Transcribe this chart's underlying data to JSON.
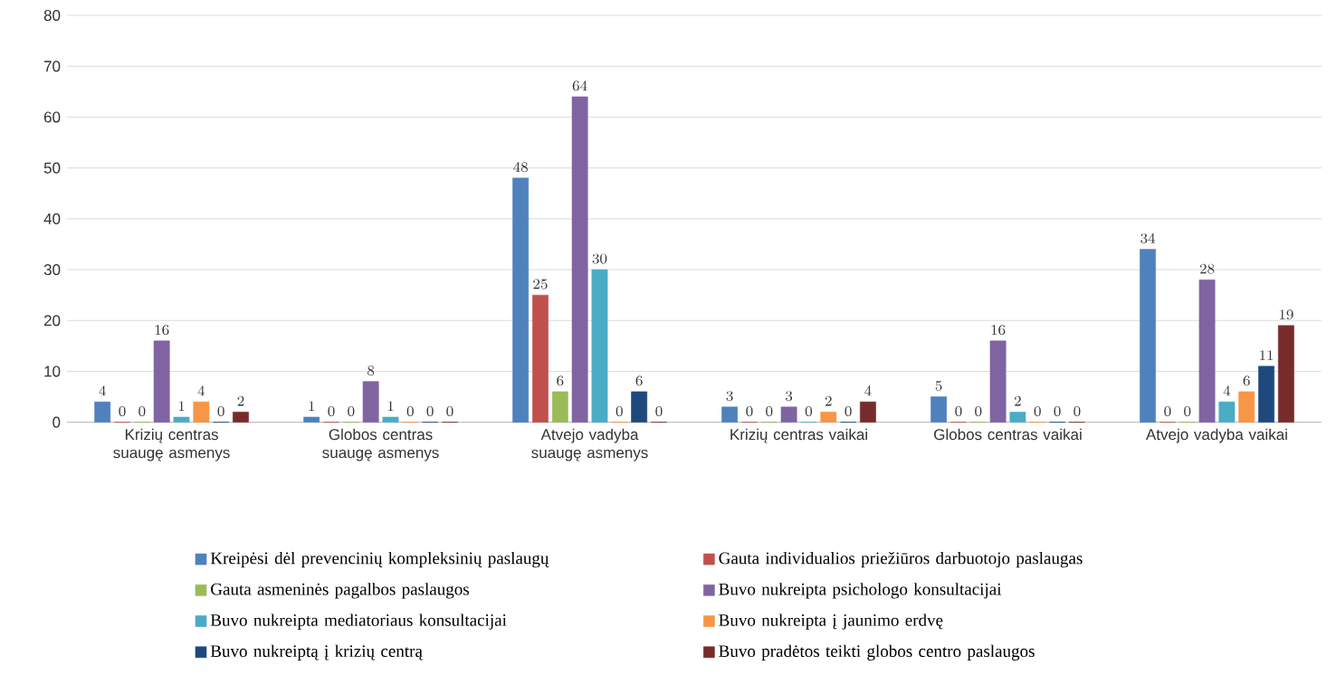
{
  "chart_data": {
    "type": "bar",
    "categories": [
      "Krizių centras suaugę asmenys",
      "Globos centras suaugę asmenys",
      "Atvejo vadyba suaugę asmenys",
      "Krizių centras vaikai",
      "Globos centras vaikai",
      "Atvejo vadyba vaikai"
    ],
    "series": [
      {
        "name": "Kreipėsi dėl prevencinių kompleksinių paslaugų",
        "color": "#4f81bd",
        "values": [
          4,
          1,
          48,
          3,
          5,
          34
        ]
      },
      {
        "name": "Gauta individualios priežiūros darbuotojo paslaugas",
        "color": "#c0504d",
        "values": [
          0,
          0,
          25,
          0,
          0,
          0
        ]
      },
      {
        "name": "Gauta asmeninės pagalbos paslaugos",
        "color": "#9bbb59",
        "values": [
          0,
          0,
          6,
          0,
          0,
          0
        ]
      },
      {
        "name": "Buvo nukreipta psichologo konsultacijai",
        "color": "#8064a2",
        "values": [
          16,
          8,
          64,
          3,
          16,
          28
        ]
      },
      {
        "name": "Buvo nukreipta mediatoriaus konsultacijai",
        "color": "#4bacc6",
        "values": [
          1,
          1,
          30,
          0,
          2,
          4
        ]
      },
      {
        "name": "Buvo nukreipta į jaunimo erdvę",
        "color": "#f79646",
        "values": [
          4,
          0,
          0,
          2,
          0,
          6
        ]
      },
      {
        "name": "Buvo nukreiptą į krizių centrą",
        "color": "#1f497d",
        "values": [
          0,
          0,
          6,
          0,
          0,
          11
        ]
      },
      {
        "name": "Buvo pradėtos teikti globos centro paslaugos",
        "color": "#772c2a",
        "values": [
          2,
          0,
          0,
          4,
          0,
          19
        ]
      }
    ],
    "ylim": [
      0,
      80
    ],
    "yticks": [
      0,
      10,
      20,
      30,
      40,
      50,
      60,
      70,
      80
    ],
    "grid": "y",
    "legend": "bottom",
    "data_labels": true
  }
}
